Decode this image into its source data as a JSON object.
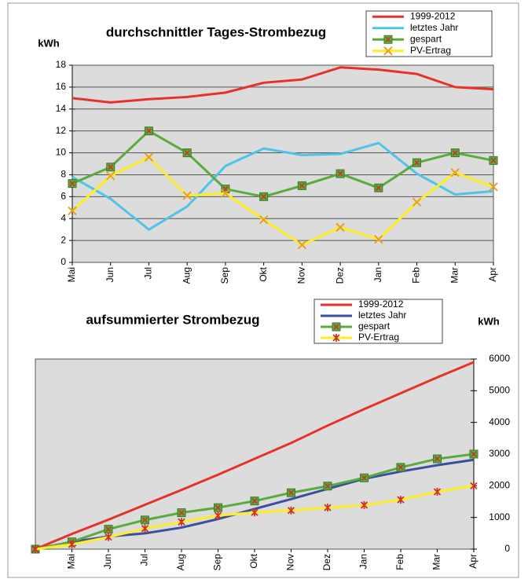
{
  "chart_data": [
    {
      "type": "line",
      "title": "durchschnittler Tages-Strombezug",
      "ylabel": "kWh",
      "categories": [
        "Mai",
        "Jun",
        "Jul",
        "Aug",
        "Sep",
        "Okt",
        "Nov",
        "Dez",
        "Jan",
        "Feb",
        "Mar",
        "Apr"
      ],
      "series": [
        {
          "name": "1999-2012",
          "color": "#e8312a",
          "marker": "none",
          "values": [
            15,
            14.6,
            14.9,
            15.1,
            15.5,
            16.4,
            16.7,
            17.8,
            17.6,
            17.2,
            16,
            15.8
          ]
        },
        {
          "name": "letztes Jahr",
          "color": "#4fc3e8",
          "marker": "none",
          "values": [
            7.8,
            5.8,
            3,
            5.1,
            8.8,
            10.4,
            9.8,
            9.9,
            10.9,
            8.1,
            6.2,
            6.5
          ]
        },
        {
          "name": "gespart",
          "color": "#5aaa3c",
          "marker": "square-x",
          "values": [
            7.2,
            8.7,
            12,
            10,
            6.7,
            6,
            7,
            8.1,
            6.8,
            9.1,
            10,
            9.3
          ]
        },
        {
          "name": "PV-Ertrag",
          "color": "#ffee22",
          "marker": "x",
          "values": [
            4.7,
            7.9,
            9.6,
            6.1,
            6.3,
            3.9,
            1.6,
            3.2,
            2.1,
            5.5,
            8.2,
            6.9
          ]
        }
      ],
      "ylim": [
        0,
        18
      ],
      "yticks": [
        0,
        2,
        4,
        6,
        8,
        10,
        12,
        14,
        16,
        18
      ],
      "grid": true,
      "y_axis_side": "left"
    },
    {
      "type": "line",
      "title": "aufsummierter Strombezug",
      "ylabel": "kWh",
      "categories": [
        null,
        "Mai",
        "Jun",
        "Jul",
        "Aug",
        "Sep",
        "Okt",
        "Nov",
        "Dez",
        "Jan",
        "Feb",
        "Mar",
        "Apr"
      ],
      "series": [
        {
          "name": "1999-2012",
          "color": "#e8312a",
          "marker": "none",
          "values": [
            0,
            480,
            930,
            1400,
            1870,
            2350,
            2850,
            3350,
            3900,
            4420,
            4920,
            5420,
            5900
          ]
        },
        {
          "name": "letztes Jahr",
          "color": "#3a4fa0",
          "marker": "none",
          "values": [
            0,
            230,
            400,
            500,
            680,
            950,
            1270,
            1580,
            1900,
            2220,
            2450,
            2650,
            2820
          ]
        },
        {
          "name": "gespart",
          "color": "#5aaa3c",
          "marker": "square-x",
          "values": [
            0,
            230,
            630,
            920,
            1150,
            1310,
            1520,
            1780,
            1990,
            2250,
            2580,
            2850,
            3000
          ]
        },
        {
          "name": "PV-Ertrag",
          "color": "#ffee22",
          "marker": "star",
          "values": [
            0,
            150,
            380,
            650,
            860,
            1060,
            1160,
            1220,
            1310,
            1390,
            1560,
            1810,
            2000
          ]
        }
      ],
      "ylim": [
        0,
        6000
      ],
      "yticks": [
        0,
        1000,
        2000,
        3000,
        4000,
        5000,
        6000
      ],
      "grid": false,
      "y_axis_side": "right"
    }
  ]
}
